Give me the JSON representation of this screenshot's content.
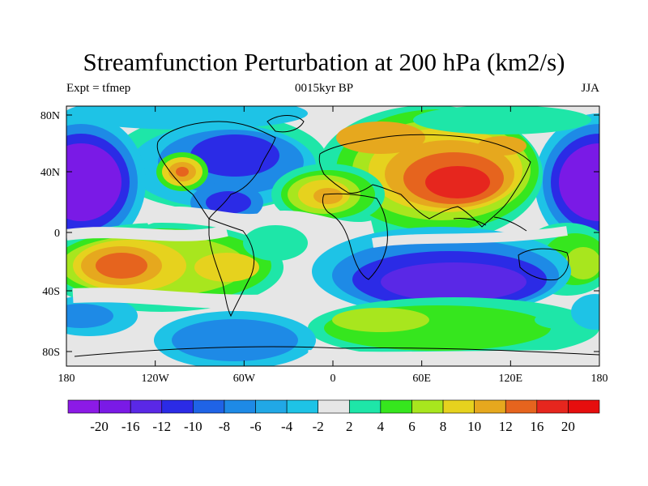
{
  "title": "Streamfunction Perturbation at 200 hPa (km2/s)",
  "subtitle_left": "Expt = tfmep",
  "subtitle_center": "0015kyr BP",
  "subtitle_right": "JJA",
  "lat_ticks": [
    "80N",
    "40N",
    "0",
    "40S",
    "80S"
  ],
  "lon_ticks": [
    "180",
    "120W",
    "60W",
    "0",
    "60E",
    "120E",
    "180"
  ],
  "colorbar": {
    "labels": [
      "-20",
      "-16",
      "-12",
      "-10",
      "-8",
      "-6",
      "-4",
      "-2",
      "2",
      "4",
      "6",
      "8",
      "10",
      "12",
      "16",
      "20"
    ],
    "colors": [
      "#8c1ae6",
      "#7a1ae6",
      "#5a28e6",
      "#2b2be6",
      "#1f63e6",
      "#1e8ae6",
      "#21a8e6",
      "#1ec3e6",
      "#e6e6e6",
      "#1ee6a8",
      "#36e61e",
      "#a8e61e",
      "#e6d21e",
      "#e6a81e",
      "#e6641e",
      "#e6261e",
      "#e60e0e"
    ]
  },
  "colors": {
    "neutral": "#e6e6e6",
    "frame": "#000000",
    "coast": "#000000"
  }
}
